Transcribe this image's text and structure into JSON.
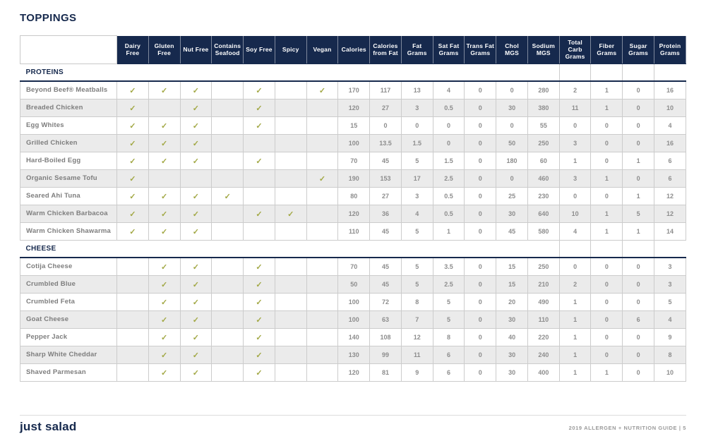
{
  "page": {
    "title": "TOPPINGS",
    "footer": {
      "logo_text": "just salad",
      "right_text": "2019 ALLERGEN + NUTRITION GUIDE  |  5"
    },
    "colors": {
      "brand_navy": "#16294d",
      "check_green": "#a2a845",
      "row_alt_gray": "#ebebeb",
      "cell_border_gray": "#cccccc"
    }
  },
  "table": {
    "check_glyph": "✓",
    "attribute_columns": [
      "Dairy Free",
      "Gluten Free",
      "Nut Free",
      "Contains Seafood",
      "Soy Free",
      "Spicy",
      "Vegan"
    ],
    "nutrition_columns": [
      "Calories",
      "Calories from Fat",
      "Fat Grams",
      "Sat Fat Grams",
      "Trans Fat Grams",
      "Chol MGS",
      "Sodium MGS",
      "Total Carb Grams",
      "Fiber Grams",
      "Sugar Grams",
      "Protein Grams"
    ],
    "sections": [
      {
        "name": "PROTEINS",
        "rows": [
          {
            "name": "Beyond Beef® Meatballs",
            "attrs": [
              1,
              1,
              1,
              0,
              1,
              0,
              1
            ],
            "values": [
              170,
              117,
              13,
              4,
              0,
              0,
              280,
              2,
              1,
              0,
              16
            ]
          },
          {
            "name": "Breaded Chicken",
            "attrs": [
              1,
              0,
              1,
              0,
              1,
              0,
              0
            ],
            "values": [
              120,
              27,
              3,
              0.5,
              0,
              30,
              380,
              11,
              1,
              0,
              10
            ]
          },
          {
            "name": "Egg Whites",
            "attrs": [
              1,
              1,
              1,
              0,
              1,
              0,
              0
            ],
            "values": [
              15,
              0,
              0,
              0,
              0,
              0,
              55,
              0,
              0,
              0,
              4
            ]
          },
          {
            "name": "Grilled Chicken",
            "attrs": [
              1,
              1,
              1,
              0,
              0,
              0,
              0
            ],
            "values": [
              100,
              13.5,
              1.5,
              0,
              0,
              50,
              250,
              3,
              0,
              0,
              16
            ]
          },
          {
            "name": "Hard-Boiled Egg",
            "attrs": [
              1,
              1,
              1,
              0,
              1,
              0,
              0
            ],
            "values": [
              70,
              45,
              5,
              1.5,
              0,
              180,
              60,
              1,
              0,
              1,
              6
            ]
          },
          {
            "name": "Organic Sesame Tofu",
            "attrs": [
              1,
              0,
              0,
              0,
              0,
              0,
              1
            ],
            "values": [
              190,
              153,
              17,
              2.5,
              0,
              0,
              460,
              3,
              1,
              0,
              6
            ]
          },
          {
            "name": "Seared Ahi Tuna",
            "attrs": [
              1,
              1,
              1,
              1,
              0,
              0,
              0
            ],
            "values": [
              80,
              27,
              3,
              0.5,
              0,
              25,
              230,
              0,
              0,
              1,
              12
            ]
          },
          {
            "name": "Warm Chicken Barbacoa",
            "attrs": [
              1,
              1,
              1,
              0,
              1,
              1,
              0
            ],
            "values": [
              120,
              36,
              4,
              0.5,
              0,
              30,
              640,
              10,
              1,
              5,
              12
            ]
          },
          {
            "name": "Warm Chicken Shawarma",
            "attrs": [
              1,
              1,
              1,
              0,
              0,
              0,
              0
            ],
            "values": [
              110,
              45,
              5,
              1,
              0,
              45,
              580,
              4,
              1,
              1,
              14
            ]
          }
        ]
      },
      {
        "name": "CHEESE",
        "rows": [
          {
            "name": "Cotija Cheese",
            "attrs": [
              0,
              1,
              1,
              0,
              1,
              0,
              0
            ],
            "values": [
              70,
              45,
              5,
              3.5,
              0,
              15,
              250,
              0,
              0,
              0,
              3
            ]
          },
          {
            "name": "Crumbled Blue",
            "attrs": [
              0,
              1,
              1,
              0,
              1,
              0,
              0
            ],
            "values": [
              50,
              45,
              5,
              2.5,
              0,
              15,
              210,
              2,
              0,
              0,
              3
            ]
          },
          {
            "name": "Crumbled Feta",
            "attrs": [
              0,
              1,
              1,
              0,
              1,
              0,
              0
            ],
            "values": [
              100,
              72,
              8,
              5,
              0,
              20,
              490,
              1,
              0,
              0,
              5
            ]
          },
          {
            "name": "Goat Cheese",
            "attrs": [
              0,
              1,
              1,
              0,
              1,
              0,
              0
            ],
            "values": [
              100,
              63,
              7,
              5,
              0,
              30,
              110,
              1,
              0,
              6,
              4
            ]
          },
          {
            "name": "Pepper Jack",
            "attrs": [
              0,
              1,
              1,
              0,
              1,
              0,
              0
            ],
            "values": [
              140,
              108,
              12,
              8,
              0,
              40,
              220,
              1,
              0,
              0,
              9
            ]
          },
          {
            "name": "Sharp White Cheddar",
            "attrs": [
              0,
              1,
              1,
              0,
              1,
              0,
              0
            ],
            "values": [
              130,
              99,
              11,
              6,
              0,
              30,
              240,
              1,
              0,
              0,
              8
            ]
          },
          {
            "name": "Shaved Parmesan",
            "attrs": [
              0,
              1,
              1,
              0,
              1,
              0,
              0
            ],
            "values": [
              120,
              81,
              9,
              6,
              0,
              30,
              400,
              1,
              1,
              0,
              10
            ]
          }
        ]
      }
    ]
  }
}
